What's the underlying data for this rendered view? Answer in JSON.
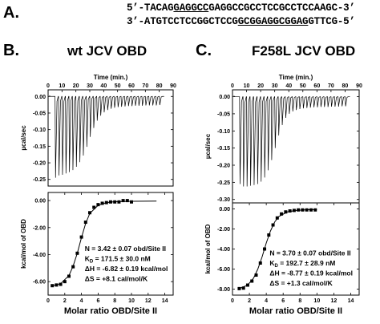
{
  "panels": {
    "a": {
      "letter": "A.",
      "top_strand": {
        "prefix": "5’-",
        "part1": "TACAG",
        "underlined1": "GAGGCC",
        "part2": "GAGGCC",
        "underlined2": "",
        "part3": "GCCTCCGCCTCCAAGC",
        "suffix": "-3’"
      },
      "bottom_strand": {
        "prefix": "3’-",
        "part1": "ATGTCCTCCGGCTCCG",
        "underlined1": "GCGGAG",
        "part2": "",
        "underlined2": "GCGGAG",
        "part3": "GTTCG",
        "suffix": "-5’"
      }
    },
    "b": {
      "letter": "B.",
      "title": "wt JCV OBD"
    },
    "c": {
      "letter": "C.",
      "title": "F258L JCV OBD"
    }
  },
  "chart_data": [
    {
      "type": "line",
      "panel": "B-top",
      "xlabel": "Time (min.)",
      "ylabel": "µcal/sec",
      "xlim": [
        0,
        90
      ],
      "ylim": [
        -0.27,
        0.02
      ],
      "xticks": [
        "0",
        "10",
        "20",
        "30",
        "40",
        "50",
        "60",
        "70",
        "80",
        "90"
      ],
      "yticks": [
        "0.00",
        "-0.05",
        "-0.10",
        "-0.15",
        "-0.20",
        "-0.25"
      ],
      "injections": {
        "start_min": 5,
        "interval_min": 2.5,
        "count": 31,
        "peak_depths": [
          -0.245,
          -0.238,
          -0.236,
          -0.232,
          -0.228,
          -0.222,
          -0.212,
          -0.198,
          -0.178,
          -0.152,
          -0.122,
          -0.095,
          -0.073,
          -0.058,
          -0.048,
          -0.041,
          -0.037,
          -0.034,
          -0.032,
          -0.031,
          -0.03,
          -0.029,
          -0.029,
          -0.028,
          -0.028,
          -0.028,
          -0.027,
          -0.027,
          -0.027,
          -0.027,
          -0.026
        ]
      }
    },
    {
      "type": "scatter",
      "panel": "B-bottom",
      "xlabel": "Molar ratio OBD/Site II",
      "ylabel": "kcal/mol of OBD",
      "xlim": [
        0,
        15
      ],
      "ylim": [
        -7.0,
        0.6
      ],
      "xticks": [
        "0",
        "2",
        "4",
        "6",
        "8",
        "10",
        "12",
        "14"
      ],
      "yticks": [
        "0.00",
        "-2.00",
        "-4.00",
        "-6.00"
      ],
      "x": [
        0.5,
        1.0,
        1.5,
        2.0,
        2.5,
        3.0,
        3.5,
        4.0,
        4.5,
        5.0,
        5.5,
        6.0,
        6.5,
        7.0,
        7.5,
        8.0,
        8.5,
        9.0,
        9.5,
        10.0
      ],
      "y": [
        -6.3,
        -6.25,
        -6.2,
        -6.0,
        -5.6,
        -4.9,
        -3.9,
        -2.7,
        -1.6,
        -0.9,
        -0.5,
        -0.3,
        -0.2,
        -0.15,
        -0.1,
        -0.1,
        -0.1,
        0.0,
        0.0,
        -0.1
      ],
      "fit": {
        "x": [
          0.5,
          1.5,
          2.5,
          3.0,
          3.5,
          4.0,
          4.5,
          5.0,
          6.0,
          7.0,
          8.0,
          10.0,
          13.0
        ],
        "y": [
          -6.3,
          -6.15,
          -5.55,
          -4.85,
          -3.9,
          -2.75,
          -1.7,
          -0.95,
          -0.35,
          -0.15,
          -0.08,
          -0.05,
          -0.04
        ]
      },
      "annotations": [
        "N = 3.42 ± 0.07 obd/Site II",
        "KD = 171.5 ± 30.0 nM",
        "ΔH = -6.82 ± 0.19 kcal/mol",
        "ΔS = +8.1 cal/mol/K"
      ]
    },
    {
      "type": "line",
      "panel": "C-top",
      "xlabel": "Time (min.)",
      "ylabel": "µcal/sec",
      "xlim": [
        0,
        90
      ],
      "ylim": [
        -0.31,
        0.02
      ],
      "xticks": [
        "0",
        "10",
        "20",
        "30",
        "40",
        "50",
        "60",
        "70",
        "80",
        "90"
      ],
      "yticks": [
        "0.00",
        "-0.05",
        "-0.10",
        "-0.15",
        "-0.20",
        "-0.25",
        "-0.30"
      ],
      "injections": {
        "start_min": 5,
        "interval_min": 2.5,
        "count": 31,
        "peak_depths": [
          -0.255,
          -0.262,
          -0.262,
          -0.26,
          -0.258,
          -0.255,
          -0.248,
          -0.236,
          -0.215,
          -0.185,
          -0.15,
          -0.113,
          -0.083,
          -0.062,
          -0.05,
          -0.043,
          -0.039,
          -0.036,
          -0.034,
          -0.033,
          -0.032,
          -0.031,
          -0.031,
          -0.03,
          -0.03,
          -0.03,
          -0.029,
          -0.029,
          -0.029,
          -0.028,
          -0.028
        ]
      }
    },
    {
      "type": "scatter",
      "panel": "C-bottom",
      "xlabel": "Molar ratio OBD/Site II",
      "ylabel": "kcal/mol of OBD",
      "xlim": [
        0,
        15
      ],
      "ylim": [
        -8.6,
        0.6
      ],
      "xticks": [
        "0",
        "2",
        "4",
        "6",
        "8",
        "10",
        "12",
        "14"
      ],
      "yticks": [
        "0.00",
        "-2.00",
        "-4.00",
        "-6.00",
        "-8.00"
      ],
      "x": [
        0.8,
        1.3,
        1.8,
        2.3,
        2.8,
        3.3,
        3.8,
        4.3,
        4.8,
        5.3,
        5.8,
        6.3,
        6.8,
        7.3,
        7.8,
        8.3,
        8.8,
        9.3,
        9.8
      ],
      "y": [
        -7.95,
        -7.9,
        -7.6,
        -7.2,
        -6.6,
        -5.4,
        -4.0,
        -2.6,
        -1.6,
        -0.9,
        -0.5,
        -0.3,
        -0.2,
        -0.15,
        -0.1,
        -0.1,
        -0.1,
        -0.1,
        -0.1
      ],
      "fit": {
        "x": [
          0.8,
          1.8,
          2.5,
          3.0,
          3.5,
          4.0,
          4.5,
          5.0,
          5.5,
          6.5,
          7.5,
          9.0,
          10.0
        ],
        "y": [
          -7.95,
          -7.6,
          -6.9,
          -6.0,
          -4.8,
          -3.4,
          -2.2,
          -1.3,
          -0.75,
          -0.3,
          -0.15,
          -0.08,
          -0.06
        ]
      },
      "annotations": [
        "N = 3.70 ± 0.07 obd/Site II",
        "KD = 192.7 ± 28.9 nM",
        "ΔH = -8.77 ± 0.19 kcal/mol",
        "ΔS = +1.3 cal/mol/K"
      ]
    }
  ]
}
